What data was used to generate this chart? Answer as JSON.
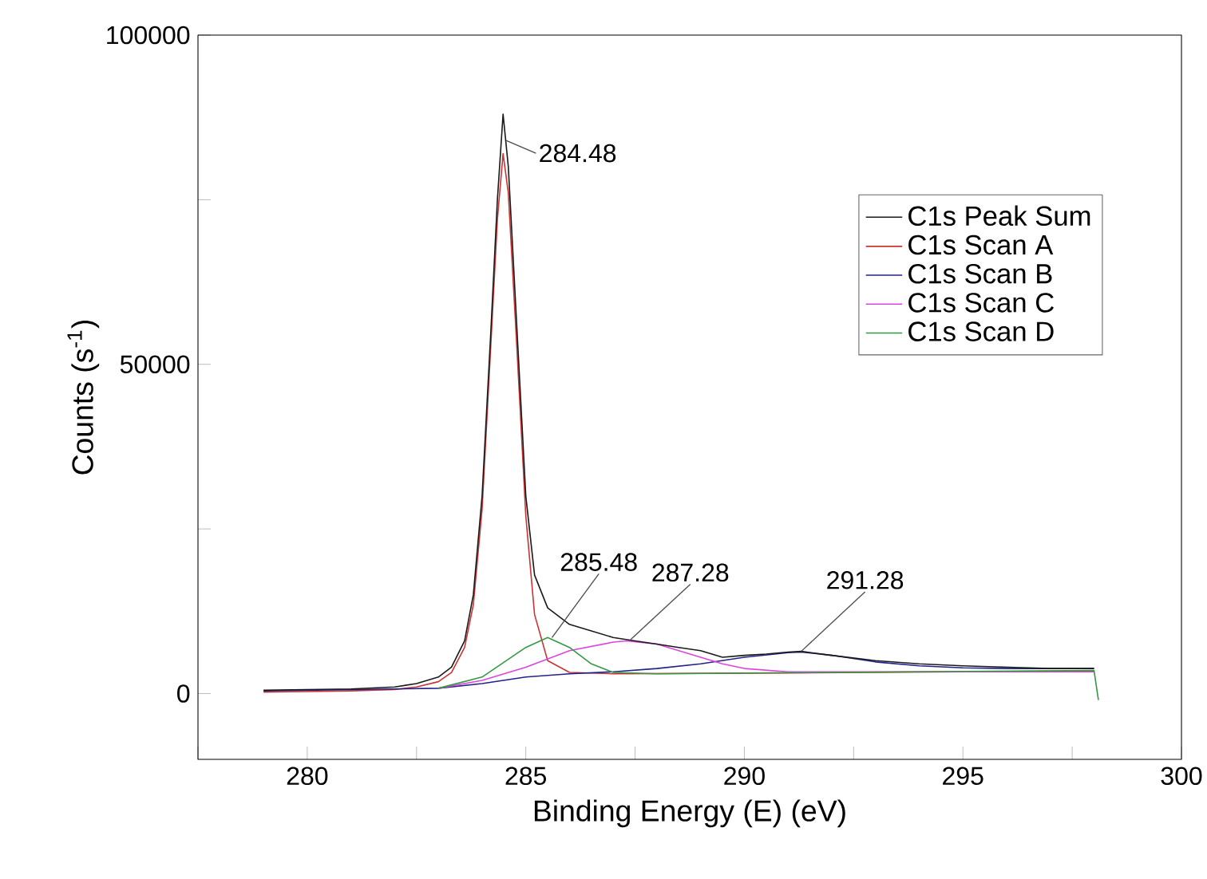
{
  "chart_data": {
    "type": "line",
    "xlabel": "Binding Energy (E) (eV)",
    "ylabel": "Counts (s$^{-1}$)",
    "xlim": [
      277.5,
      300
    ],
    "ylim": [
      -10000,
      100000
    ],
    "xticks": [
      {
        "value": 277.5,
        "label": null
      },
      280,
      {
        "value": 282.5,
        "label": null
      },
      285,
      {
        "value": 287.5,
        "label": null
      },
      290,
      {
        "value": 292.5,
        "label": null
      },
      295,
      {
        "value": 297.5,
        "label": null
      },
      300
    ],
    "yticks": [
      0,
      {
        "value": 25000,
        "label": null
      },
      50000,
      {
        "value": 75000,
        "label": null
      },
      100000
    ],
    "grid": false,
    "legend": "top right",
    "marker": "none",
    "line_style": "solid",
    "series": [
      {
        "name": "C1s Peak Sum",
        "color": "#1a1a1a",
        "x": [
          279,
          280,
          281,
          282,
          282.5,
          283,
          283.3,
          283.6,
          283.8,
          284.0,
          284.2,
          284.35,
          284.48,
          284.6,
          284.8,
          285.0,
          285.2,
          285.5,
          286,
          286.5,
          287,
          287.5,
          288,
          288.5,
          289,
          289.5,
          290,
          290.5,
          291,
          291.3,
          292,
          293,
          294,
          295,
          296,
          297,
          298
        ],
        "values": [
          500,
          600,
          700,
          1000,
          1500,
          2500,
          4000,
          8000,
          15000,
          30000,
          55000,
          75000,
          88000,
          80000,
          55000,
          30000,
          18000,
          13000,
          10500,
          9500,
          8500,
          8000,
          7500,
          7000,
          6500,
          5500,
          5800,
          6000,
          6300,
          6400,
          5800,
          5000,
          4500,
          4200,
          4000,
          3800,
          3800
        ]
      },
      {
        "name": "C1s Scan A",
        "color": "#cc3333",
        "x": [
          279,
          280,
          281,
          282,
          282.5,
          283,
          283.3,
          283.6,
          283.8,
          284.0,
          284.2,
          284.35,
          284.48,
          284.6,
          284.8,
          285.0,
          285.2,
          285.5,
          286,
          287,
          290,
          295,
          298
        ],
        "values": [
          200,
          300,
          400,
          600,
          1000,
          1800,
          3200,
          7000,
          13500,
          28000,
          53000,
          72000,
          82000,
          76000,
          52000,
          27000,
          12000,
          5000,
          3200,
          3000,
          3100,
          3300,
          3400
        ]
      },
      {
        "name": "C1s Scan B",
        "color": "#22228a",
        "x": [
          279,
          283,
          284,
          285,
          286,
          287,
          288,
          289,
          290,
          291,
          291.3,
          292,
          293,
          294,
          295,
          296,
          298
        ],
        "values": [
          400,
          800,
          1500,
          2500,
          3000,
          3300,
          3800,
          4500,
          5500,
          6200,
          6300,
          5800,
          4800,
          4200,
          3900,
          3800,
          3800
        ]
      },
      {
        "name": "C1s Scan C",
        "color": "#dd44dd",
        "x": [
          283,
          284,
          285,
          286,
          287,
          287.3,
          288,
          289,
          289.5,
          290,
          291,
          298
        ],
        "values": [
          800,
          2000,
          4000,
          6500,
          7800,
          8000,
          7500,
          5500,
          4500,
          3800,
          3300,
          3300
        ]
      },
      {
        "name": "C1s Scan D",
        "color": "#339944",
        "x": [
          283,
          284,
          285,
          285.5,
          286,
          286.5,
          287,
          288,
          298,
          298.1
        ],
        "values": [
          800,
          2500,
          7000,
          8500,
          7000,
          4500,
          3200,
          3000,
          3500,
          -1000
        ]
      }
    ],
    "annotations": [
      {
        "text": "284.48",
        "x": 284.55,
        "y": 84000
      },
      {
        "text": "285.48",
        "x": 285.6,
        "y": 8500
      },
      {
        "text": "287.28",
        "x": 287.4,
        "y": 8200
      },
      {
        "text": "291.28",
        "x": 291.3,
        "y": 6400
      }
    ]
  }
}
